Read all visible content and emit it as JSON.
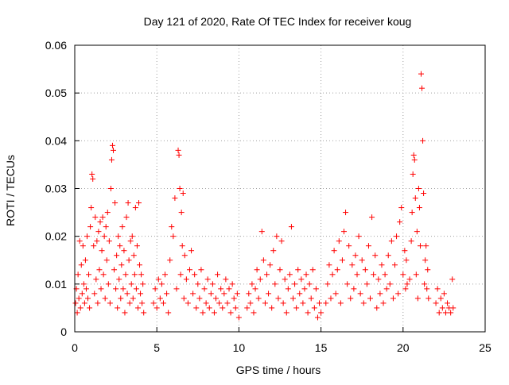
{
  "chart_data": {
    "type": "scatter",
    "title": "Day 121 of 2020, Rate Of TEC Index for receiver koug",
    "xlabel": "GPS time / hours",
    "ylabel": "ROTI / TECUs",
    "xlim": [
      0,
      25
    ],
    "ylim": [
      0,
      0.06
    ],
    "x_ticks": [
      0,
      5,
      10,
      15,
      20,
      25
    ],
    "y_ticks": [
      0,
      0.01,
      0.02,
      0.03,
      0.04,
      0.05,
      0.06
    ],
    "x_tick_labels": [
      "0",
      "5",
      "10",
      "15",
      "20",
      "25"
    ],
    "y_tick_labels": [
      "0",
      "0.01",
      "0.02",
      "0.03",
      "0.04",
      "0.05",
      "0.06"
    ],
    "grid": true,
    "marker": "+",
    "marker_color": "#ff0000",
    "series": [
      {
        "points": [
          [
            0.05,
            0.006
          ],
          [
            0.1,
            0.009
          ],
          [
            0.15,
            0.004
          ],
          [
            0.2,
            0.012
          ],
          [
            0.25,
            0.007
          ],
          [
            0.3,
            0.019
          ],
          [
            0.35,
            0.005
          ],
          [
            0.4,
            0.014
          ],
          [
            0.45,
            0.008
          ],
          [
            0.5,
            0.018
          ],
          [
            0.55,
            0.01
          ],
          [
            0.6,
            0.006
          ],
          [
            0.65,
            0.015
          ],
          [
            0.7,
            0.009
          ],
          [
            0.75,
            0.02
          ],
          [
            0.8,
            0.007
          ],
          [
            0.85,
            0.012
          ],
          [
            0.9,
            0.005
          ],
          [
            0.95,
            0.022
          ],
          [
            1.0,
            0.026
          ],
          [
            1.05,
            0.033
          ],
          [
            1.1,
            0.032
          ],
          [
            1.15,
            0.018
          ],
          [
            1.2,
            0.008
          ],
          [
            1.25,
            0.024
          ],
          [
            1.3,
            0.011
          ],
          [
            1.35,
            0.019
          ],
          [
            1.4,
            0.006
          ],
          [
            1.45,
            0.021
          ],
          [
            1.5,
            0.013
          ],
          [
            1.55,
            0.023
          ],
          [
            1.6,
            0.009
          ],
          [
            1.65,
            0.017
          ],
          [
            1.7,
            0.024
          ],
          [
            1.75,
            0.012
          ],
          [
            1.8,
            0.02
          ],
          [
            1.85,
            0.007
          ],
          [
            1.9,
            0.022
          ],
          [
            1.95,
            0.015
          ],
          [
            2.0,
            0.025
          ],
          [
            2.05,
            0.01
          ],
          [
            2.1,
            0.019
          ],
          [
            2.15,
            0.006
          ],
          [
            2.2,
            0.03
          ],
          [
            2.25,
            0.036
          ],
          [
            2.3,
            0.039
          ],
          [
            2.35,
            0.038
          ],
          [
            2.4,
            0.013
          ],
          [
            2.45,
            0.027
          ],
          [
            2.5,
            0.009
          ],
          [
            2.55,
            0.016
          ],
          [
            2.6,
            0.005
          ],
          [
            2.65,
            0.02
          ],
          [
            2.7,
            0.011
          ],
          [
            2.75,
            0.018
          ],
          [
            2.8,
            0.007
          ],
          [
            2.85,
            0.014
          ],
          [
            2.9,
            0.022
          ],
          [
            2.95,
            0.009
          ],
          [
            3.0,
            0.017
          ],
          [
            3.05,
            0.004
          ],
          [
            3.1,
            0.012
          ],
          [
            3.15,
            0.024
          ],
          [
            3.2,
            0.008
          ],
          [
            3.25,
            0.027
          ],
          [
            3.3,
            0.015
          ],
          [
            3.35,
            0.006
          ],
          [
            3.4,
            0.019
          ],
          [
            3.45,
            0.01
          ],
          [
            3.5,
            0.02
          ],
          [
            3.55,
            0.007
          ],
          [
            3.6,
            0.016
          ],
          [
            3.65,
            0.012
          ],
          [
            3.7,
            0.026
          ],
          [
            3.75,
            0.009
          ],
          [
            3.8,
            0.018
          ],
          [
            3.85,
            0.005
          ],
          [
            3.9,
            0.027
          ],
          [
            3.95,
            0.014
          ],
          [
            4.0,
            0.008
          ],
          [
            4.05,
            0.012
          ],
          [
            4.1,
            0.006
          ],
          [
            4.15,
            0.01
          ],
          [
            4.2,
            0.004
          ],
          [
            4.8,
            0.006
          ],
          [
            4.9,
            0.009
          ],
          [
            5.0,
            0.005
          ],
          [
            5.1,
            0.011
          ],
          [
            5.2,
            0.007
          ],
          [
            5.3,
            0.01
          ],
          [
            5.4,
            0.006
          ],
          [
            5.5,
            0.012
          ],
          [
            5.6,
            0.008
          ],
          [
            5.7,
            0.004
          ],
          [
            5.8,
            0.015
          ],
          [
            5.9,
            0.022
          ],
          [
            6.0,
            0.02
          ],
          [
            6.1,
            0.028
          ],
          [
            6.2,
            0.009
          ],
          [
            6.3,
            0.038
          ],
          [
            6.35,
            0.037
          ],
          [
            6.4,
            0.03
          ],
          [
            6.45,
            0.012
          ],
          [
            6.5,
            0.025
          ],
          [
            6.55,
            0.018
          ],
          [
            6.6,
            0.029
          ],
          [
            6.65,
            0.007
          ],
          [
            6.7,
            0.016
          ],
          [
            6.8,
            0.011
          ],
          [
            6.9,
            0.006
          ],
          [
            7.0,
            0.013
          ],
          [
            7.1,
            0.017
          ],
          [
            7.2,
            0.008
          ],
          [
            7.3,
            0.012
          ],
          [
            7.4,
            0.005
          ],
          [
            7.5,
            0.01
          ],
          [
            7.6,
            0.007
          ],
          [
            7.7,
            0.013
          ],
          [
            7.8,
            0.004
          ],
          [
            7.9,
            0.009
          ],
          [
            8.0,
            0.006
          ],
          [
            8.1,
            0.011
          ],
          [
            8.2,
            0.005
          ],
          [
            8.3,
            0.008
          ],
          [
            8.4,
            0.01
          ],
          [
            8.5,
            0.004
          ],
          [
            8.6,
            0.007
          ],
          [
            8.7,
            0.012
          ],
          [
            8.8,
            0.006
          ],
          [
            8.9,
            0.009
          ],
          [
            9.0,
            0.005
          ],
          [
            9.1,
            0.008
          ],
          [
            9.2,
            0.011
          ],
          [
            9.3,
            0.006
          ],
          [
            9.4,
            0.009
          ],
          [
            9.5,
            0.004
          ],
          [
            9.6,
            0.01
          ],
          [
            9.7,
            0.007
          ],
          [
            9.8,
            0.005
          ],
          [
            9.9,
            0.008
          ],
          [
            10.0,
            0.003
          ],
          [
            10.5,
            0.005
          ],
          [
            10.6,
            0.008
          ],
          [
            10.7,
            0.006
          ],
          [
            10.8,
            0.01
          ],
          [
            10.9,
            0.004
          ],
          [
            11.0,
            0.009
          ],
          [
            11.1,
            0.013
          ],
          [
            11.2,
            0.007
          ],
          [
            11.3,
            0.011
          ],
          [
            11.4,
            0.021
          ],
          [
            11.5,
            0.015
          ],
          [
            11.6,
            0.006
          ],
          [
            11.7,
            0.012
          ],
          [
            11.8,
            0.008
          ],
          [
            11.9,
            0.014
          ],
          [
            12.0,
            0.005
          ],
          [
            12.1,
            0.017
          ],
          [
            12.2,
            0.01
          ],
          [
            12.3,
            0.02
          ],
          [
            12.4,
            0.007
          ],
          [
            12.5,
            0.013
          ],
          [
            12.6,
            0.019
          ],
          [
            12.7,
            0.006
          ],
          [
            12.8,
            0.011
          ],
          [
            12.9,
            0.004
          ],
          [
            13.0,
            0.009
          ],
          [
            13.1,
            0.012
          ],
          [
            13.2,
            0.022
          ],
          [
            13.3,
            0.007
          ],
          [
            13.4,
            0.01
          ],
          [
            13.5,
            0.005
          ],
          [
            13.6,
            0.013
          ],
          [
            13.7,
            0.008
          ],
          [
            13.8,
            0.011
          ],
          [
            13.9,
            0.006
          ],
          [
            14.0,
            0.009
          ],
          [
            14.1,
            0.012
          ],
          [
            14.2,
            0.004
          ],
          [
            14.3,
            0.01
          ],
          [
            14.4,
            0.007
          ],
          [
            14.5,
            0.013
          ],
          [
            14.6,
            0.005
          ],
          [
            14.7,
            0.009
          ],
          [
            14.8,
            0.003
          ],
          [
            14.9,
            0.006
          ],
          [
            15.0,
            0.004
          ],
          [
            15.3,
            0.006
          ],
          [
            15.4,
            0.01
          ],
          [
            15.5,
            0.014
          ],
          [
            15.6,
            0.007
          ],
          [
            15.7,
            0.012
          ],
          [
            15.8,
            0.017
          ],
          [
            15.9,
            0.008
          ],
          [
            16.0,
            0.013
          ],
          [
            16.1,
            0.019
          ],
          [
            16.2,
            0.006
          ],
          [
            16.3,
            0.015
          ],
          [
            16.4,
            0.021
          ],
          [
            16.5,
            0.025
          ],
          [
            16.6,
            0.01
          ],
          [
            16.7,
            0.018
          ],
          [
            16.8,
            0.007
          ],
          [
            16.9,
            0.014
          ],
          [
            17.0,
            0.009
          ],
          [
            17.1,
            0.016
          ],
          [
            17.2,
            0.012
          ],
          [
            17.3,
            0.02
          ],
          [
            17.4,
            0.008
          ],
          [
            17.5,
            0.015
          ],
          [
            17.6,
            0.006
          ],
          [
            17.7,
            0.013
          ],
          [
            17.8,
            0.01
          ],
          [
            17.9,
            0.018
          ],
          [
            18.0,
            0.007
          ],
          [
            18.1,
            0.024
          ],
          [
            18.2,
            0.012
          ],
          [
            18.3,
            0.016
          ],
          [
            18.4,
            0.005
          ],
          [
            18.5,
            0.011
          ],
          [
            18.6,
            0.008
          ],
          [
            18.7,
            0.014
          ],
          [
            18.8,
            0.006
          ],
          [
            18.9,
            0.012
          ],
          [
            19.0,
            0.009
          ],
          [
            19.1,
            0.016
          ],
          [
            19.2,
            0.01
          ],
          [
            19.3,
            0.019
          ],
          [
            19.4,
            0.007
          ],
          [
            19.5,
            0.014
          ],
          [
            19.6,
            0.02
          ],
          [
            19.7,
            0.008
          ],
          [
            19.8,
            0.023
          ],
          [
            19.9,
            0.026
          ],
          [
            20.0,
            0.012
          ],
          [
            20.1,
            0.017
          ],
          [
            20.15,
            0.009
          ],
          [
            20.2,
            0.015
          ],
          [
            20.25,
            0.01
          ],
          [
            20.4,
            0.011
          ],
          [
            20.5,
            0.019
          ],
          [
            20.55,
            0.025
          ],
          [
            20.6,
            0.033
          ],
          [
            20.65,
            0.037
          ],
          [
            20.7,
            0.036
          ],
          [
            20.75,
            0.028
          ],
          [
            20.8,
            0.012
          ],
          [
            20.85,
            0.021
          ],
          [
            20.9,
            0.007
          ],
          [
            20.95,
            0.03
          ],
          [
            21.0,
            0.026
          ],
          [
            21.05,
            0.018
          ],
          [
            21.1,
            0.054
          ],
          [
            21.15,
            0.051
          ],
          [
            21.2,
            0.04
          ],
          [
            21.25,
            0.029
          ],
          [
            21.3,
            0.01
          ],
          [
            21.35,
            0.015
          ],
          [
            21.4,
            0.018
          ],
          [
            21.45,
            0.009
          ],
          [
            21.5,
            0.013
          ],
          [
            21.55,
            0.007
          ],
          [
            22.0,
            0.006
          ],
          [
            22.1,
            0.009
          ],
          [
            22.2,
            0.004
          ],
          [
            22.3,
            0.007
          ],
          [
            22.4,
            0.005
          ],
          [
            22.5,
            0.008
          ],
          [
            22.6,
            0.004
          ],
          [
            22.7,
            0.006
          ],
          [
            22.8,
            0.005
          ],
          [
            22.9,
            0.004
          ],
          [
            23.0,
            0.011
          ],
          [
            23.05,
            0.005
          ]
        ]
      }
    ]
  }
}
